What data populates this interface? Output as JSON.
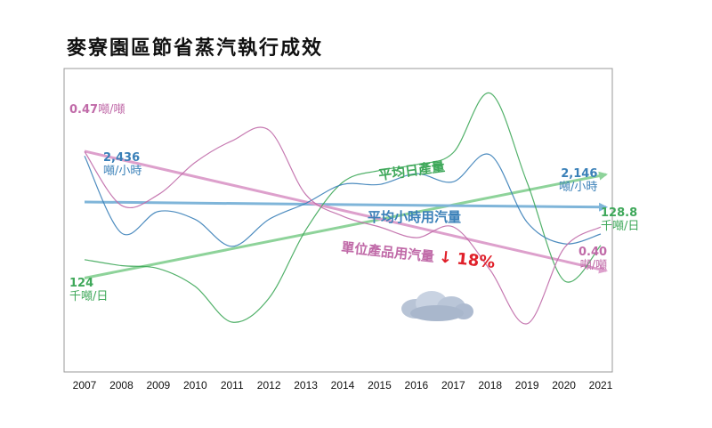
{
  "page_title": "麥寮園區節省蒸汽執行成效",
  "colors": {
    "production": "#3fa85a",
    "production_trend": "#8ed39a",
    "steam_hour": "#3a80b8",
    "steam_hour_trend": "#7fb5d9",
    "unit_steam": "#c06aa8",
    "unit_steam_trend": "#dda0cc",
    "reduction": "#e0202a",
    "frame": "#9a9a9a"
  },
  "chart_data": {
    "type": "line",
    "title": "麥寮園區節省蒸汽執行成效",
    "x": [
      "2007",
      "2008",
      "2009",
      "2010",
      "2011",
      "2012",
      "2013",
      "2014",
      "2015",
      "2016",
      "2017",
      "2018",
      "2019",
      "2020",
      "2021"
    ],
    "series": [
      {
        "name": "平均日產量",
        "unit": "千噸/日",
        "start_label": {
          "value": "124",
          "unit": "千噸/日"
        },
        "end_label": {
          "value": "128.8",
          "unit": "千噸/日"
        },
        "values": [
          124,
          122,
          121,
          115,
          103,
          111,
          134,
          150,
          154,
          156,
          160,
          180,
          150,
          117,
          128.8
        ],
        "trend": "rising"
      },
      {
        "name": "平均小時用汽量",
        "unit": "噸/小時",
        "start_label": {
          "value": "2,436",
          "unit": "噸/小時"
        },
        "end_label": {
          "value": "2,146",
          "unit": "噸/小時"
        },
        "values": [
          2436,
          2150,
          2230,
          2200,
          2100,
          2200,
          2260,
          2330,
          2330,
          2370,
          2340,
          2440,
          2190,
          2110,
          2146
        ],
        "trend": "flat"
      },
      {
        "name": "單位產品用汽量",
        "unit": "噸/噸",
        "start_label": {
          "value": "0.47",
          "unit": "噸/噸"
        },
        "end_label": {
          "value": "0.40",
          "unit": "噸/噸"
        },
        "values": [
          0.47,
          0.42,
          0.43,
          0.46,
          0.48,
          0.49,
          0.43,
          0.41,
          0.4,
          0.39,
          0.4,
          0.36,
          0.31,
          0.38,
          0.4
        ],
        "trend": "falling"
      }
    ],
    "annotations": [
      {
        "text": "↓",
        "color": "#e0202a"
      },
      {
        "text": "18%",
        "color": "#e0202a"
      }
    ],
    "grid": false,
    "legend": "none",
    "ylabel": "",
    "xlabel": ""
  }
}
